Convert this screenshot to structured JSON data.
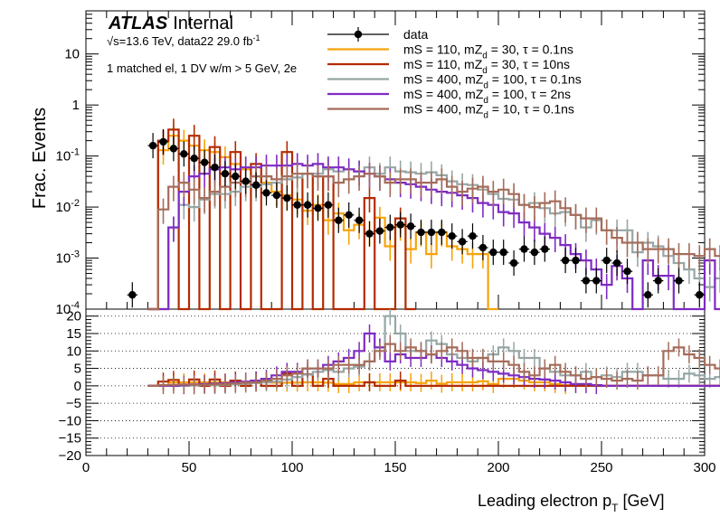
{
  "chart_data": {
    "type": "step-histogram",
    "x": {
      "label": "Leading electron p",
      "label_sub": "T",
      "label_unit": " [GeV]",
      "range": [
        0,
        300
      ],
      "ticks": [
        "0",
        "50",
        "100",
        "150",
        "200",
        "250",
        "300"
      ],
      "bin_width": 5
    },
    "y": {
      "label": "Frac. Events",
      "scale": "log",
      "range": [
        0.0001,
        70
      ],
      "ticks": [
        {
          "value": 10,
          "label": "10"
        },
        {
          "value": 1,
          "label": "1"
        },
        {
          "value": 0.1,
          "base": "10",
          "exp": "-1"
        },
        {
          "value": 0.01,
          "base": "10",
          "exp": "-2"
        },
        {
          "value": 0.001,
          "base": "10",
          "exp": "-3"
        },
        {
          "value": 0.0001,
          "base": "10",
          "exp": "-4"
        }
      ]
    },
    "ratio_panel": {
      "range": [
        -20,
        22
      ],
      "ticks": [
        "20",
        "15",
        "10",
        "5",
        "0",
        "−5",
        "−10",
        "−15",
        "−20"
      ],
      "tick_values": [
        20,
        15,
        10,
        5,
        0,
        -5,
        -10,
        -15,
        -20
      ],
      "dotted_grid": true
    },
    "annotations": {
      "experiment": "ATLAS",
      "status": "Internal",
      "energy_line": "√s=13.6 TeV, data22 29.0 fb",
      "energy_sup": "-1",
      "selection": "1 matched el, 1 DV w/m > 5 GeV, 2e"
    },
    "legend": [
      {
        "label": "data",
        "color": "#000000",
        "marker": true
      },
      {
        "label": "mS = 110, mZ",
        "sub": "d",
        "rest": " = 30, τ = 0.1ns",
        "color": "#f7a30a"
      },
      {
        "label": "mS = 110, mZ",
        "sub": "d",
        "rest": " = 30, τ = 10ns",
        "color": "#b32b00"
      },
      {
        "label": "mS = 400, mZ",
        "sub": "d",
        "rest": " = 100, τ = 0.1ns",
        "color": "#96a6a5"
      },
      {
        "label": "mS = 400, mZ",
        "sub": "d",
        "rest": " = 100, τ = 2ns",
        "color": "#7f2bc2"
      },
      {
        "label": "mS = 400, mZ",
        "sub": "d",
        "rest": " = 10, τ = 0.1ns",
        "color": "#a56c5a"
      }
    ],
    "data_points": [
      {
        "x": 22.5,
        "y": 0.00019
      },
      {
        "x": 32.5,
        "y": 0.16
      },
      {
        "x": 37.5,
        "y": 0.19
      },
      {
        "x": 42.5,
        "y": 0.14
      },
      {
        "x": 47.5,
        "y": 0.11
      },
      {
        "x": 52.5,
        "y": 0.09
      },
      {
        "x": 57.5,
        "y": 0.075
      },
      {
        "x": 62.5,
        "y": 0.06
      },
      {
        "x": 67.5,
        "y": 0.045
      },
      {
        "x": 72.5,
        "y": 0.04
      },
      {
        "x": 77.5,
        "y": 0.032
      },
      {
        "x": 82.5,
        "y": 0.027
      },
      {
        "x": 87.5,
        "y": 0.019
      },
      {
        "x": 92.5,
        "y": 0.017
      },
      {
        "x": 97.5,
        "y": 0.015
      },
      {
        "x": 102.5,
        "y": 0.011
      },
      {
        "x": 107.5,
        "y": 0.011
      },
      {
        "x": 112.5,
        "y": 0.0095
      },
      {
        "x": 117.5,
        "y": 0.011
      },
      {
        "x": 122.5,
        "y": 0.0055
      },
      {
        "x": 127.5,
        "y": 0.007
      },
      {
        "x": 132.5,
        "y": 0.0055
      },
      {
        "x": 137.5,
        "y": 0.003
      },
      {
        "x": 142.5,
        "y": 0.0034
      },
      {
        "x": 147.5,
        "y": 0.004
      },
      {
        "x": 152.5,
        "y": 0.0045
      },
      {
        "x": 157.5,
        "y": 0.0042
      },
      {
        "x": 162.5,
        "y": 0.0032
      },
      {
        "x": 167.5,
        "y": 0.0032
      },
      {
        "x": 172.5,
        "y": 0.0032
      },
      {
        "x": 177.5,
        "y": 0.0027
      },
      {
        "x": 182.5,
        "y": 0.0021
      },
      {
        "x": 187.5,
        "y": 0.0027
      },
      {
        "x": 192.5,
        "y": 0.0016
      },
      {
        "x": 197.5,
        "y": 0.0013
      },
      {
        "x": 202.5,
        "y": 0.0013
      },
      {
        "x": 207.5,
        "y": 0.0008
      },
      {
        "x": 212.5,
        "y": 0.0015
      },
      {
        "x": 217.5,
        "y": 0.0013
      },
      {
        "x": 222.5,
        "y": 0.0015
      },
      {
        "x": 232.5,
        "y": 0.0009
      },
      {
        "x": 237.5,
        "y": 0.0009
      },
      {
        "x": 242.5,
        "y": 0.00036
      },
      {
        "x": 247.5,
        "y": 0.00036
      },
      {
        "x": 252.5,
        "y": 0.0009
      },
      {
        "x": 257.5,
        "y": 0.0008
      },
      {
        "x": 262.5,
        "y": 0.00055
      },
      {
        "x": 272.5,
        "y": 0.00019
      },
      {
        "x": 277.5,
        "y": 0.00036
      },
      {
        "x": 287.5,
        "y": 0.00036
      },
      {
        "x": 297.5,
        "y": 0.00019
      }
    ],
    "series": [
      {
        "name": "mS = 110, mZd = 30, τ = 0.1ns",
        "color": "#f7a30a",
        "x_start": 30,
        "values": [
          0.0001,
          0.13,
          0.25,
          0.2,
          0.16,
          0.13,
          0.12,
          0.095,
          0.07,
          0.055,
          0.04,
          0.03,
          0.02,
          0.017,
          0.014,
          0.0085,
          0.011,
          0.0055,
          0.0075,
          0.0035,
          0.0045,
          0.0032,
          0.0062,
          0.0017,
          0.0042,
          0.0015,
          0.0032,
          0.0012,
          0.0032,
          0.0017,
          0.0015,
          0.0012,
          0.0012,
          0.0001
        ]
      },
      {
        "name": "mS = 110, mZd = 30, τ = 10ns",
        "color": "#b32b00",
        "x_start": 30,
        "values": [
          0.0001,
          0.2,
          0.33,
          0.0001,
          0.25,
          0.0001,
          0.15,
          0.0001,
          0.12,
          0.0001,
          0.07,
          0.0001,
          0.0001,
          0.12,
          0.0001,
          0.045,
          0.0001,
          0.04,
          0.0001,
          0.0001,
          0.0001,
          0.015,
          0.0001,
          0.0001,
          0.006,
          0.0001
        ]
      },
      {
        "name": "mS = 400, mZd = 100, τ = 0.1ns",
        "color": "#96a6a5",
        "x_start": 30,
        "values": [
          0.0001,
          0.0001,
          0.004,
          0.011,
          0.01,
          0.014,
          0.018,
          0.018,
          0.02,
          0.025,
          0.025,
          0.028,
          0.03,
          0.035,
          0.038,
          0.045,
          0.045,
          0.055,
          0.05,
          0.055,
          0.05,
          0.06,
          0.045,
          0.06,
          0.05,
          0.048,
          0.045,
          0.048,
          0.042,
          0.032,
          0.028,
          0.027,
          0.022,
          0.018,
          0.0145,
          0.014,
          0.011,
          0.012,
          0.0095,
          0.0075,
          0.008,
          0.007,
          0.004,
          0.0055,
          0.0035,
          0.0035,
          0.0035,
          0.0013,
          0.002,
          0.0017,
          0.0011,
          0.0008,
          0.0006,
          0.0004,
          0.00027,
          0.0004,
          0.00018,
          0.0004,
          0.0004,
          0.0003,
          0.0002,
          0.00036,
          0.00036,
          0.0004,
          0.00027,
          0.00018,
          0.00018,
          0.00018,
          0.00018,
          0.00036
        ]
      },
      {
        "name": "mS = 400, mZd = 100, τ = 2ns",
        "color": "#7f2bc2",
        "x_start": 30,
        "values": [
          0.0001,
          0.0001,
          0.004,
          0.02,
          0.04,
          0.045,
          0.055,
          0.06,
          0.055,
          0.06,
          0.06,
          0.065,
          0.065,
          0.065,
          0.07,
          0.065,
          0.07,
          0.06,
          0.06,
          0.055,
          0.05,
          0.045,
          0.04,
          0.035,
          0.03,
          0.028,
          0.025,
          0.022,
          0.02,
          0.019,
          0.017,
          0.015,
          0.012,
          0.011,
          0.008,
          0.0075,
          0.005,
          0.004,
          0.003,
          0.0025,
          0.0018,
          0.0012,
          0.0009,
          0.0006,
          0.0003,
          0.0007,
          0.0004,
          0.0001,
          0.0009,
          0.00045,
          0.00045,
          0.0001,
          0.0001,
          0.0001,
          0.0009,
          0.0001,
          0.0001,
          0.0001,
          0.0001,
          0.0001
        ]
      },
      {
        "name": "mS = 400, mZd = 10, τ = 0.1ns",
        "color": "#a56c5a",
        "x_start": 30,
        "values": [
          0.0001,
          0.009,
          0.025,
          0.03,
          0.022,
          0.015,
          0.02,
          0.025,
          0.03,
          0.03,
          0.04,
          0.04,
          0.035,
          0.04,
          0.045,
          0.045,
          0.04,
          0.04,
          0.03,
          0.035,
          0.04,
          0.045,
          0.04,
          0.03,
          0.035,
          0.035,
          0.03,
          0.03,
          0.035,
          0.025,
          0.02,
          0.023,
          0.025,
          0.02,
          0.022,
          0.018,
          0.011,
          0.01,
          0.012,
          0.013,
          0.0095,
          0.007,
          0.006,
          0.006,
          0.0035,
          0.0025,
          0.002,
          0.002,
          0.0015,
          0.0015,
          0.0015,
          0.0012,
          0.0012,
          0.0011,
          0.0015,
          0.0011,
          0.0009,
          0.0009,
          0.0012,
          0.0012,
          0.00055,
          0.0009,
          0.00055,
          0.0009,
          0.00045,
          0.0009,
          0.0004,
          0.0006,
          0.0009,
          0.0012
        ]
      }
    ],
    "ratio_series": [
      {
        "color": "#f7a30a",
        "x_start": 30,
        "values": [
          0,
          0,
          1,
          1,
          1,
          1,
          1,
          1,
          1,
          0.6,
          1,
          1,
          0.9,
          0.9,
          0.9,
          1,
          1,
          0.9,
          0.5,
          0.5,
          1,
          1,
          1,
          1,
          1,
          1,
          0.8,
          1.5,
          0.6,
          1,
          1,
          1,
          1.3,
          0.5,
          2,
          2,
          1.5,
          1,
          1,
          0.5,
          0.2,
          0,
          0,
          0,
          0,
          0,
          0,
          0,
          0,
          0,
          0,
          0,
          0,
          0,
          0,
          0,
          0,
          0,
          0,
          0
        ]
      },
      {
        "color": "#b32b00",
        "x_start": 30,
        "values": [
          0,
          1.2,
          1.7,
          0,
          1.8,
          0,
          1.8,
          0,
          1.5,
          0,
          1.5,
          0,
          0,
          3.5,
          0,
          3.3,
          0,
          2,
          0,
          0,
          0,
          1,
          0,
          0,
          1.5,
          0,
          0,
          0,
          0,
          0,
          0,
          0,
          0,
          0,
          0,
          0,
          0,
          0,
          0,
          0,
          0,
          0,
          0,
          0,
          0,
          0,
          0,
          0,
          0,
          0,
          0,
          0,
          0,
          0,
          0,
          0,
          0,
          0,
          0,
          0
        ]
      },
      {
        "color": "#96a6a5",
        "x_start": 30,
        "values": [
          0,
          0,
          0,
          0,
          0.1,
          0.3,
          0.2,
          0.3,
          0.4,
          0.6,
          0.8,
          1,
          1.2,
          1.8,
          2.5,
          3.2,
          4,
          4.5,
          4,
          5,
          5.5,
          7,
          11,
          20,
          15,
          10,
          10,
          13,
          12,
          9,
          8,
          7,
          8,
          9,
          11,
          10,
          8,
          8,
          5,
          4,
          3,
          3,
          4,
          2.5,
          3,
          2.5,
          4,
          4,
          3,
          3,
          2,
          2,
          3.5,
          3,
          2,
          2.5,
          2,
          1,
          3,
          2
        ]
      },
      {
        "color": "#7f2bc2",
        "x_start": 30,
        "values": [
          0,
          0,
          0,
          0.2,
          0.4,
          0.5,
          0.6,
          0.8,
          1,
          1.2,
          1.5,
          2,
          3,
          4,
          4,
          5,
          5,
          6,
          7,
          8,
          10,
          15,
          11,
          7,
          9,
          8,
          8,
          9,
          8,
          7,
          6,
          5,
          4.5,
          4,
          3.5,
          3,
          2.5,
          2,
          1.8,
          1.5,
          1,
          0.5,
          0.5,
          0.2,
          0,
          0,
          0,
          0,
          0,
          0,
          0,
          0,
          0,
          0,
          0,
          0,
          0,
          0,
          0,
          0
        ]
      },
      {
        "color": "#a56c5a",
        "x_start": 30,
        "values": [
          0,
          0.2,
          0.3,
          0.4,
          0.3,
          0.3,
          0.4,
          0.5,
          0.7,
          0.9,
          1,
          1.5,
          2,
          3,
          3.5,
          5,
          5,
          5,
          6,
          6,
          6,
          7,
          10,
          12,
          10,
          11,
          10,
          9,
          10,
          11,
          10,
          8,
          8,
          7,
          7,
          6,
          4,
          3,
          5,
          6,
          4,
          3,
          2,
          2.5,
          2,
          1.5,
          2,
          1.5,
          3,
          3,
          10,
          11,
          9,
          8,
          6,
          5,
          4,
          3,
          2,
          8
        ]
      }
    ]
  }
}
